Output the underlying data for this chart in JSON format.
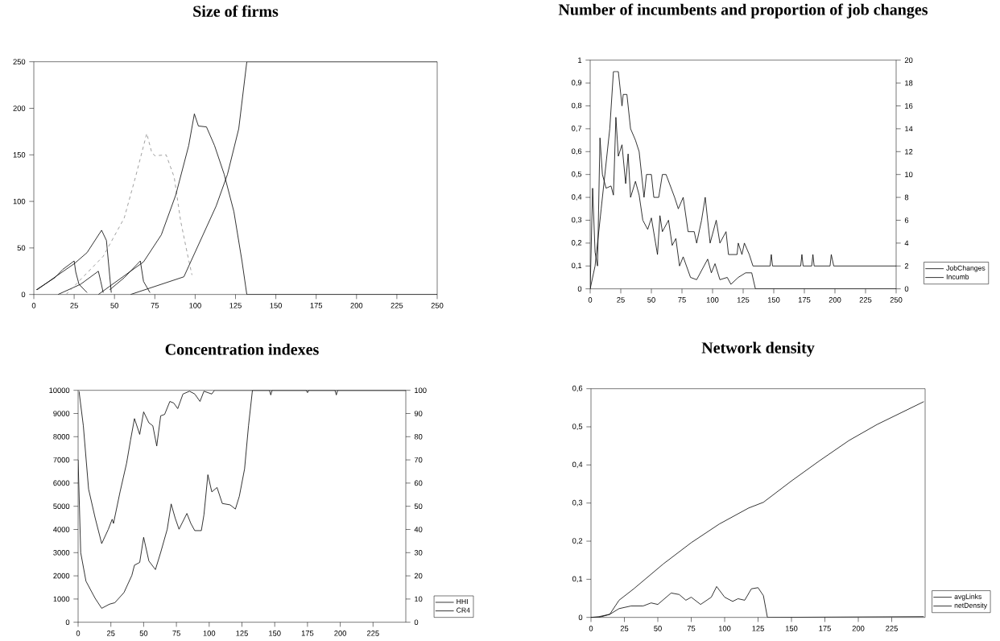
{
  "chart_data": [
    {
      "type": "line",
      "title": "Size of firms",
      "xlim": [
        0,
        250
      ],
      "xticks": [
        0,
        25,
        50,
        75,
        100,
        125,
        150,
        175,
        200,
        225,
        250
      ],
      "ylim": [
        0,
        250
      ],
      "yticks": [
        0,
        50,
        100,
        150,
        200,
        250
      ],
      "series": [
        {
          "color": "#000000",
          "x": [
            1.5,
            13,
            18,
            25,
            26,
            28,
            33
          ],
          "values": [
            5,
            18,
            27,
            36,
            24,
            11,
            2
          ]
        },
        {
          "color": "#000000",
          "x": [
            2,
            15,
            25,
            33,
            42,
            45,
            48
          ],
          "values": [
            5,
            21,
            33,
            45,
            69,
            58,
            2
          ]
        },
        {
          "color": "#000000",
          "x": [
            15,
            29,
            40,
            41.5,
            43
          ],
          "values": [
            0,
            11,
            25,
            14,
            2
          ]
        },
        {
          "color": "#000000",
          "x": [
            47,
            56,
            66,
            68,
            72
          ],
          "values": [
            5,
            18,
            36,
            14,
            2
          ]
        },
        {
          "color": "#888888",
          "line_style": "dashed",
          "x": [
            20,
            43,
            56,
            63,
            70,
            73,
            75,
            82,
            87,
            91,
            95,
            98
          ],
          "values": [
            0,
            41,
            82,
            126,
            173,
            153,
            149,
            150,
            126,
            79,
            45,
            21
          ]
        },
        {
          "color": "#000000",
          "x": [
            40,
            68,
            79,
            88,
            96,
            99.5,
            102,
            107,
            112,
            118,
            124,
            129,
            132,
            250
          ],
          "values": [
            0,
            35,
            64,
            107,
            160,
            194,
            181,
            180,
            160,
            129,
            89,
            36,
            0,
            0
          ]
        },
        {
          "color": "#000000",
          "x": [
            60,
            93,
            113,
            120,
            127,
            132,
            250
          ],
          "values": [
            0,
            19,
            95,
            129,
            178,
            250,
            250
          ]
        }
      ]
    },
    {
      "type": "line",
      "title": "Number of incumbents and proportion of job changes",
      "legend": "right",
      "xlim": [
        0,
        250
      ],
      "xticks": [
        0,
        25,
        50,
        75,
        100,
        125,
        150,
        175,
        200,
        225,
        250
      ],
      "ylim": [
        0,
        1
      ],
      "yticks": [
        0,
        {
          "value": 0.1,
          "label": "0,1"
        },
        {
          "value": 0.2,
          "label": "0,2"
        },
        {
          "value": 0.3,
          "label": "0,3"
        },
        {
          "value": 0.4,
          "label": "0,4"
        },
        {
          "value": 0.5,
          "label": "0,5"
        },
        {
          "value": 0.6,
          "label": "0,6"
        },
        {
          "value": 0.7,
          "label": "0,7"
        },
        {
          "value": 0.8,
          "label": "0,8"
        },
        {
          "value": 0.9,
          "label": "0,9"
        },
        1
      ],
      "y2lim": [
        0,
        20
      ],
      "y2ticks": [
        0,
        2,
        4,
        6,
        8,
        10,
        12,
        14,
        16,
        18,
        20
      ],
      "series": [
        {
          "name": "JobChanges",
          "color": "#000000",
          "x": [
            0,
            2,
            4,
            6,
            8,
            10,
            13,
            17,
            19,
            21,
            23,
            26,
            29,
            31,
            33,
            37,
            40,
            43,
            47,
            50,
            55,
            57,
            59,
            64,
            67,
            70,
            73,
            76,
            82,
            87,
            96,
            99,
            102,
            106,
            112,
            115,
            121,
            127,
            132,
            135,
            250
          ],
          "values": [
            0,
            0.44,
            0.16,
            0.1,
            0.66,
            0.5,
            0.44,
            0.45,
            0.41,
            0.75,
            0.58,
            0.63,
            0.46,
            0.59,
            0.4,
            0.47,
            0.41,
            0.3,
            0.26,
            0.31,
            0.15,
            0.32,
            0.25,
            0.3,
            0.19,
            0.22,
            0.1,
            0.14,
            0.05,
            0.04,
            0.13,
            0.07,
            0.11,
            0.04,
            0.05,
            0.02,
            0.05,
            0.07,
            0.07,
            0,
            0
          ]
        },
        {
          "name": "Incumb",
          "color": "#000000",
          "axis": "y2",
          "x": [
            0,
            4,
            9,
            16,
            19,
            23,
            26,
            27,
            30,
            33,
            37,
            40,
            44,
            46,
            50,
            52,
            56,
            59,
            62,
            69,
            72,
            76,
            80,
            85,
            87,
            91,
            94,
            98,
            103,
            106,
            111,
            113,
            120,
            121,
            124,
            126,
            130,
            133,
            147,
            148,
            149,
            172,
            173,
            174,
            181,
            182,
            183,
            196,
            197,
            199,
            250
          ],
          "values": [
            0,
            2,
            7,
            14,
            19,
            19,
            16,
            17,
            17,
            14,
            13,
            12,
            8,
            10,
            10,
            8,
            8,
            10,
            10,
            8,
            7,
            8,
            5,
            5,
            4,
            6,
            8,
            4,
            6,
            4,
            5,
            3,
            3,
            4,
            3,
            4,
            3,
            2,
            2,
            3,
            2,
            2,
            3,
            2,
            2,
            3,
            2,
            2,
            3,
            2,
            2
          ]
        }
      ]
    },
    {
      "type": "line",
      "title": "Concentration indexes",
      "legend": "right",
      "xlim": [
        0,
        250
      ],
      "xticks": [
        0,
        25,
        50,
        75,
        100,
        125,
        150,
        175,
        200,
        225
      ],
      "ylim": [
        0,
        10000
      ],
      "yticks": [
        0,
        1000,
        2000,
        3000,
        4000,
        5000,
        6000,
        7000,
        8000,
        9000,
        10000
      ],
      "y2lim": [
        0,
        100
      ],
      "y2ticks": [
        0,
        10,
        20,
        30,
        40,
        50,
        60,
        70,
        80,
        90,
        100
      ],
      "series": [
        {
          "name": "HHI",
          "color": "#000000",
          "x": [
            0,
            2,
            6,
            13,
            18,
            24,
            28,
            35,
            41,
            43,
            47,
            50,
            54,
            59,
            63,
            68,
            71,
            74,
            77,
            83,
            86,
            89,
            94,
            96,
            99,
            102,
            106,
            110,
            116,
            120,
            123,
            127,
            130,
            133,
            250
          ],
          "values": [
            7000,
            3000,
            1770,
            1030,
            600,
            780,
            840,
            1280,
            2020,
            2460,
            2580,
            3660,
            2640,
            2270,
            3010,
            4010,
            5100,
            4500,
            4010,
            4690,
            4260,
            3950,
            3950,
            4630,
            6360,
            5620,
            5810,
            5120,
            5060,
            4880,
            5430,
            6610,
            8470,
            10000,
            10000
          ]
        },
        {
          "name": "CR4",
          "color": "#000000",
          "axis": "y2",
          "x": [
            0.7,
            4,
            8,
            13,
            18,
            23,
            26,
            27,
            32,
            37,
            40,
            43,
            47,
            50,
            54,
            57,
            60,
            63,
            66,
            70,
            73,
            76,
            80,
            85,
            89,
            93,
            96,
            102,
            104,
            146,
            147,
            148,
            174,
            175,
            176,
            196,
            197,
            198,
            250
          ],
          "values": [
            99.6,
            84.7,
            57.4,
            45,
            33.9,
            40,
            44.4,
            42.6,
            56.2,
            68.6,
            78.5,
            87.8,
            81,
            90.7,
            86,
            84.7,
            76,
            89,
            89.6,
            95.2,
            94.5,
            92.1,
            98.4,
            99.6,
            98.4,
            95.2,
            99.6,
            98.4,
            100,
            100,
            98,
            100,
            100,
            99,
            100,
            100,
            98,
            100,
            100
          ]
        }
      ]
    },
    {
      "type": "line",
      "title": "Network density",
      "legend": "right",
      "xlim": [
        0,
        250
      ],
      "xticks": [
        0,
        25,
        50,
        75,
        100,
        125,
        150,
        175,
        200,
        225
      ],
      "ylim": [
        0,
        0.6
      ],
      "yticks": [
        0,
        {
          "value": 0.1,
          "label": "0,1"
        },
        {
          "value": 0.2,
          "label": "0,2"
        },
        {
          "value": 0.3,
          "label": "0,3"
        },
        {
          "value": 0.4,
          "label": "0,4"
        },
        {
          "value": 0.5,
          "label": "0,5"
        },
        {
          "value": 0.6,
          "label": "0,6"
        }
      ],
      "series": [
        {
          "name": "avgLinks",
          "color": "#000000",
          "x": [
            0,
            6,
            14,
            21,
            30,
            39,
            45,
            50,
            60,
            66,
            71,
            75,
            82,
            90,
            94,
            100,
            106,
            110,
            115,
            120,
            125,
            129,
            132,
            249
          ],
          "values": [
            0,
            0,
            0.008,
            0.023,
            0.03,
            0.03,
            0.038,
            0.034,
            0.064,
            0.06,
            0.045,
            0.053,
            0.034,
            0.053,
            0.081,
            0.053,
            0.042,
            0.049,
            0.045,
            0.075,
            0.078,
            0.057,
            0,
            0.002
          ]
        },
        {
          "name": "netDensity",
          "color": "#000000",
          "x": [
            0,
            6,
            14,
            21,
            32,
            54,
            75,
            96,
            118,
            129,
            150,
            171,
            193,
            214,
            249
          ],
          "values": [
            0,
            0.002,
            0.008,
            0.045,
            0.075,
            0.14,
            0.196,
            0.245,
            0.287,
            0.302,
            0.358,
            0.411,
            0.464,
            0.506,
            0.566
          ]
        }
      ]
    }
  ]
}
